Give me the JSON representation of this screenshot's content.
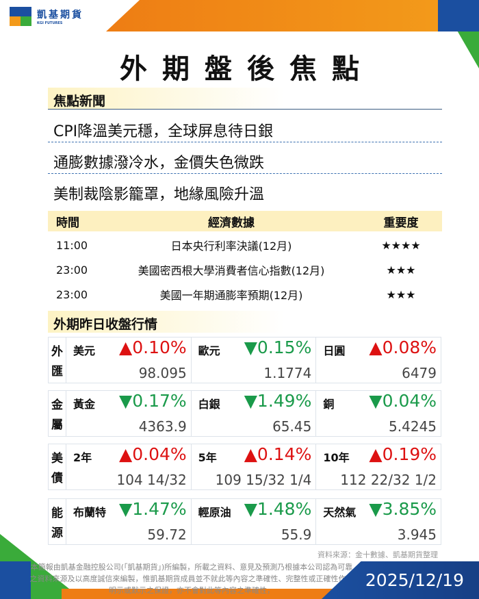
{
  "logo": {
    "cn": "凱基期貨",
    "en": "KGI FUTURES"
  },
  "title": "外期盤後焦點",
  "news_section": "焦點新聞",
  "news": [
    "CPI降溫美元穩，全球屏息待日銀",
    "通膨數據潑冷水，金價失色微跌",
    "美制裁陰影籠罩，地緣風險升溫"
  ],
  "calendar": {
    "headers": [
      "時間",
      "經濟數據",
      "重要度"
    ],
    "rows": [
      {
        "time": "11:00",
        "event": "日本央行利率決議(12月)",
        "stars": "★★★★"
      },
      {
        "time": "23:00",
        "event": "美國密西根大學消費者信心指數(12月)",
        "stars": "★★★"
      },
      {
        "time": "23:00",
        "event": "美國一年期通膨率預期(12月)",
        "stars": "★★★"
      }
    ]
  },
  "market_section": "外期昨日收盤行情",
  "groups": [
    {
      "cat": [
        "外",
        "匯"
      ],
      "items": [
        {
          "name": "美元",
          "chg": "▲0.10%",
          "dir": "up",
          "price": "98.095"
        },
        {
          "name": "歐元",
          "chg": "▼0.15%",
          "dir": "dn",
          "price": "1.1774"
        },
        {
          "name": "日圓",
          "chg": "▲0.08%",
          "dir": "up",
          "price": "6479"
        }
      ]
    },
    {
      "cat": [
        "金",
        "屬"
      ],
      "items": [
        {
          "name": "黃金",
          "chg": "▼0.17%",
          "dir": "dn",
          "price": "4363.9"
        },
        {
          "name": "白銀",
          "chg": "▼1.49%",
          "dir": "dn",
          "price": "65.45"
        },
        {
          "name": "銅",
          "chg": "▼0.04%",
          "dir": "dn",
          "price": "5.4245"
        }
      ]
    },
    {
      "cat": [
        "美",
        "債"
      ],
      "items": [
        {
          "name": "2年",
          "chg": "▲0.04%",
          "dir": "up",
          "price": "104 14/32"
        },
        {
          "name": "5年",
          "chg": "▲0.14%",
          "dir": "up",
          "price": "109 15/32 1/4"
        },
        {
          "name": "10年",
          "chg": "▲0.19%",
          "dir": "up",
          "price": "112 22/32 1/2"
        }
      ]
    },
    {
      "cat": [
        "能",
        "源"
      ],
      "items": [
        {
          "name": "布蘭特",
          "chg": "▼1.47%",
          "dir": "dn",
          "price": "59.72"
        },
        {
          "name": "輕原油",
          "chg": "▼1.48%",
          "dir": "dn",
          "price": "55.9"
        },
        {
          "name": "天然氣",
          "chg": "▼3.85%",
          "dir": "dn",
          "price": "3.945"
        }
      ]
    }
  ],
  "source": "資料來源：金十數據、凱基期貨整理",
  "disclaimer": "本簡報由凱基金融控股公司(「凱基期貨」)所編製，所載之資料、意見及預測乃根據本公司認為可靠之資料來源及以高度誠信來編製，惟凱基期貨成員並不就此等內容之準確性、完整性或正確性作出明示或默示之保證，亦不會對此等內容之準確性，",
  "date": "2025/12/19"
}
